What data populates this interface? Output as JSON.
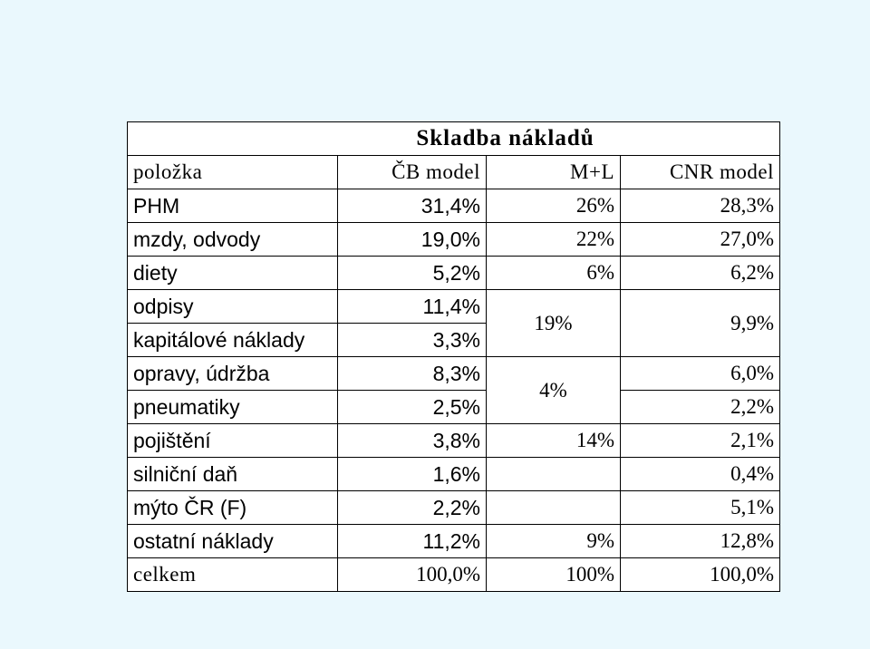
{
  "title": "Skladba nákladů",
  "headers": [
    "položka",
    "ČB model",
    "M+L",
    "CNR model"
  ],
  "rows": [
    {
      "label": "PHM",
      "cb": "31,4%",
      "ml": "26%",
      "cnr": "28,3%"
    },
    {
      "label": "mzdy, odvody",
      "cb": "19,0%",
      "ml": "22%",
      "cnr": "27,0%"
    },
    {
      "label": "diety",
      "cb": "5,2%",
      "ml": "6%",
      "cnr": "6,2%"
    },
    {
      "label": "odpisy",
      "cb": "11,4%",
      "ml": "19%",
      "cnr": "9,9%"
    },
    {
      "label": "kapitálové náklady",
      "cb": "3,3%"
    },
    {
      "label": "opravy, údržba",
      "cb": "8,3%",
      "ml": "4%",
      "cnr": "6,0%"
    },
    {
      "label": "pneumatiky",
      "cb": "2,5%",
      "cnr": "2,2%"
    },
    {
      "label": "pojištění",
      "cb": "3,8%",
      "ml": "14%",
      "cnr": "2,1%"
    },
    {
      "label": "silniční daň",
      "cb": "1,6%",
      "ml": "",
      "cnr": "0,4%"
    },
    {
      "label": "mýto ČR (F)",
      "cb": "2,2%",
      "ml": "",
      "cnr": "5,1%"
    },
    {
      "label": "ostatní náklady",
      "cb": "11,2%",
      "ml": "9%",
      "cnr": "12,8%"
    }
  ],
  "total": {
    "label": "celkem",
    "cb": "100,0%",
    "ml": "100%",
    "cnr": "100,0%"
  }
}
